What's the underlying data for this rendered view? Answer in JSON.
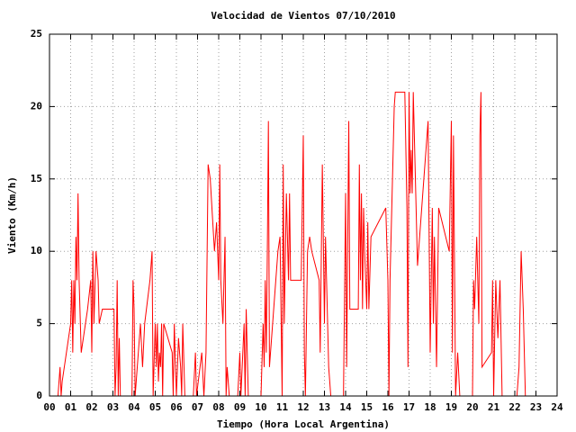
{
  "chart_data": {
    "type": "line",
    "title": "Velocidad de Vientos 07/10/2010",
    "x_label": "Tiempo (Hora Local Argentina)",
    "y_label": "Viento (Km/h)",
    "color": "#ff0000",
    "grid": true,
    "xlim": [
      0,
      24
    ],
    "ylim": [
      0,
      25
    ],
    "yticks": [
      0,
      5,
      10,
      15,
      20,
      25
    ],
    "xticks": [
      {
        "value": 0,
        "label": "00"
      },
      {
        "value": 1,
        "label": "01"
      },
      {
        "value": 2,
        "label": "02"
      },
      {
        "value": 3,
        "label": "03"
      },
      {
        "value": 4,
        "label": "04"
      },
      {
        "value": 5,
        "label": "05"
      },
      {
        "value": 6,
        "label": "06"
      },
      {
        "value": 7,
        "label": "07"
      },
      {
        "value": 8,
        "label": "08"
      },
      {
        "value": 9,
        "label": "09"
      },
      {
        "value": 10,
        "label": "10"
      },
      {
        "value": 11,
        "label": "11"
      },
      {
        "value": 12,
        "label": "12"
      },
      {
        "value": 13,
        "label": "13"
      },
      {
        "value": 14,
        "label": "14"
      },
      {
        "value": 15,
        "label": "15"
      },
      {
        "value": 16,
        "label": "16"
      },
      {
        "value": 17,
        "label": "17"
      },
      {
        "value": 18,
        "label": "18"
      },
      {
        "value": 19,
        "label": "19"
      },
      {
        "value": 20,
        "label": "20"
      },
      {
        "value": 21,
        "label": "21"
      },
      {
        "value": 22,
        "label": "22"
      },
      {
        "value": 23,
        "label": "23"
      },
      {
        "value": 24,
        "label": "24"
      }
    ],
    "x": [
      0.4,
      0.5,
      0.55,
      0.6,
      1.0,
      1.05,
      1.1,
      1.15,
      1.2,
      1.25,
      1.3,
      1.35,
      1.4,
      1.5,
      1.8,
      1.95,
      2.0,
      2.05,
      2.1,
      2.2,
      2.3,
      2.35,
      2.5,
      2.55,
      3.05,
      3.1,
      3.15,
      3.2,
      3.25,
      3.3,
      3.35,
      3.9,
      3.95,
      4.0,
      4.05,
      4.3,
      4.4,
      4.5,
      4.75,
      4.85,
      4.9,
      5.0,
      5.05,
      5.1,
      5.15,
      5.2,
      5.25,
      5.3,
      5.35,
      5.4,
      5.8,
      5.85,
      5.9,
      6.0,
      6.1,
      6.2,
      6.25,
      6.3,
      6.4,
      6.8,
      6.9,
      6.95,
      7.2,
      7.3,
      7.4,
      7.5,
      7.6,
      7.8,
      7.9,
      8.0,
      8.05,
      8.1,
      8.2,
      8.3,
      8.35,
      8.4,
      8.5,
      8.9,
      9.0,
      9.05,
      9.2,
      9.25,
      9.3,
      9.4,
      10.0,
      10.1,
      10.15,
      10.2,
      10.25,
      10.3,
      10.35,
      10.4,
      10.8,
      10.9,
      11.0,
      11.05,
      11.1,
      11.2,
      11.3,
      11.35,
      11.4,
      11.9,
      12.0,
      12.05,
      12.1,
      12.2,
      12.3,
      12.4,
      12.75,
      12.8,
      12.9,
      13.0,
      13.05,
      13.1,
      13.2,
      13.3,
      13.9,
      14.0,
      14.05,
      14.15,
      14.2,
      14.6,
      14.65,
      14.7,
      14.75,
      14.8,
      14.85,
      14.9,
      15.0,
      15.05,
      15.1,
      15.2,
      15.9,
      16.0,
      16.05,
      16.1,
      16.3,
      16.35,
      16.8,
      16.9,
      16.95,
      17.0,
      17.05,
      17.1,
      17.15,
      17.2,
      17.4,
      17.8,
      17.9,
      18.0,
      18.1,
      18.15,
      18.2,
      18.3,
      18.4,
      18.9,
      19.0,
      19.05,
      19.1,
      19.2,
      19.3,
      19.4,
      20.0,
      20.05,
      20.1,
      20.2,
      20.3,
      20.35,
      20.4,
      20.45,
      20.9,
      20.95,
      21.0,
      21.1,
      21.2,
      21.3,
      21.4,
      22.1,
      22.2,
      22.3,
      22.4,
      22.5
    ],
    "values": [
      0,
      2,
      0,
      1,
      5,
      8,
      3,
      8,
      5,
      11,
      8,
      14,
      8,
      3,
      6,
      8,
      3,
      10,
      5,
      10,
      8,
      5,
      6,
      6,
      6,
      0,
      2,
      8,
      0,
      4,
      0,
      0,
      8,
      6,
      0,
      5,
      2,
      5,
      8,
      10,
      0,
      5,
      2,
      5,
      1,
      3,
      2,
      5,
      0,
      5,
      3,
      0,
      5,
      0,
      4,
      2,
      0,
      5,
      0,
      0,
      3,
      0,
      3,
      0,
      3,
      16,
      15,
      10,
      12,
      8,
      16,
      8,
      5,
      11,
      0,
      2,
      0,
      0,
      3,
      0,
      5,
      0,
      6,
      0,
      0,
      5,
      2,
      8,
      3,
      10,
      19,
      2,
      10,
      11,
      0,
      16,
      5,
      14,
      8,
      14,
      8,
      8,
      18,
      3,
      0,
      10,
      11,
      10,
      8,
      3,
      16,
      5,
      11,
      8,
      2,
      0,
      0,
      14,
      2,
      19,
      6,
      6,
      16,
      8,
      14,
      6,
      13,
      10,
      6,
      12,
      6,
      11,
      13,
      8,
      0,
      8,
      20,
      21,
      21,
      13,
      2,
      21,
      14,
      17,
      14,
      21,
      9,
      17,
      19,
      3,
      13,
      5,
      11,
      2,
      13,
      10,
      19,
      3,
      18,
      0,
      3,
      0,
      0,
      8,
      6,
      11,
      5,
      18,
      21,
      2,
      3,
      8,
      0,
      8,
      4,
      8,
      0,
      0,
      2,
      10,
      6,
      0
    ]
  }
}
